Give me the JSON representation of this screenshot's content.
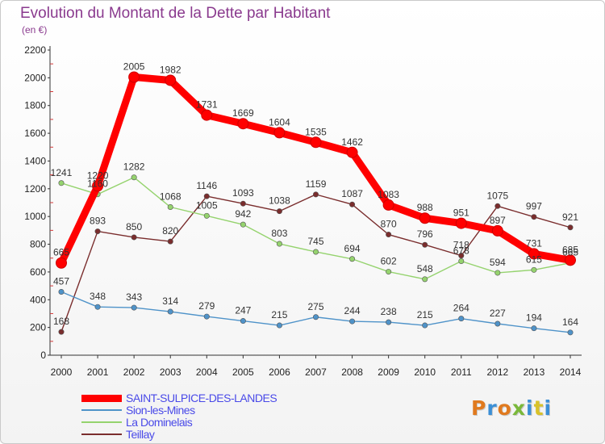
{
  "title": "Evolution du Montant de la Dette par Habitant",
  "unit_label": "(en €)",
  "brand": "Proxiti",
  "chart_data": {
    "type": "line",
    "title": "Evolution du Montant de la Dette par Habitant",
    "ylabel": "(en €)",
    "xlabel": "",
    "x": [
      "2000",
      "2001",
      "2002",
      "2003",
      "2004",
      "2005",
      "2006",
      "2007",
      "2008",
      "2009",
      "2010",
      "2011",
      "2012",
      "2013",
      "2014"
    ],
    "ylim": [
      0,
      2200
    ],
    "yticks": [
      0,
      200,
      400,
      600,
      800,
      1000,
      1200,
      1400,
      1600,
      1800,
      2000,
      2200
    ],
    "grid": false,
    "legend_position": "bottom-left",
    "series": [
      {
        "name": "SAINT-SULPICE-DES-LANDES",
        "color": "#ff0000",
        "values": [
          665,
          1220,
          2005,
          1982,
          1731,
          1669,
          1604,
          1535,
          1462,
          1083,
          988,
          951,
          897,
          731,
          685
        ],
        "labels": [
          "665",
          "1220",
          "2005",
          "1982",
          "1731",
          "1669",
          "1604",
          "1535",
          "1462",
          "1083",
          "988",
          "951",
          "897",
          "731",
          "685"
        ]
      },
      {
        "name": "Sion-les-Mines",
        "color": "#4f93c9",
        "values": [
          457,
          348,
          343,
          314,
          279,
          247,
          215,
          275,
          244,
          238,
          215,
          264,
          227,
          194,
          164
        ],
        "labels": [
          "457",
          "348",
          "343",
          "314",
          "279",
          "247",
          "215",
          "275",
          "244",
          "238",
          "215",
          "264",
          "227",
          "194",
          "164"
        ]
      },
      {
        "name": "La Dominelais",
        "color": "#95d36e",
        "values": [
          1241,
          1160,
          1282,
          1068,
          1005,
          942,
          803,
          745,
          694,
          602,
          548,
          678,
          594,
          615,
          665
        ],
        "labels": [
          "1241",
          "1160",
          "1282",
          "1068",
          "1005",
          "942",
          "803",
          "745",
          "694",
          "602",
          "548",
          "678",
          "594",
          "615",
          "665"
        ]
      },
      {
        "name": "Teillay",
        "color": "#7a2d2d",
        "values": [
          168,
          893,
          850,
          820,
          1146,
          1093,
          1038,
          1159,
          1087,
          870,
          796,
          718,
          1075,
          997,
          921
        ],
        "labels": [
          "168",
          "893",
          "850",
          "820",
          "1146",
          "1093",
          "1038",
          "1159",
          "1087",
          "870",
          "796",
          "718",
          "1075",
          "997",
          "921"
        ]
      }
    ]
  }
}
